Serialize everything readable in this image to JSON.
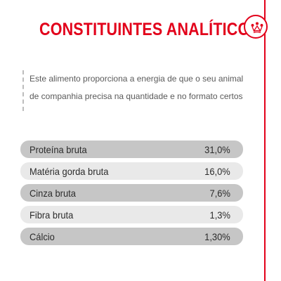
{
  "title": "CONSTITUINTES ANALÍTICOS",
  "logo_icon": "crown-icon",
  "colors": {
    "accent": "#e2001a",
    "row_dark": "#c6c6c6",
    "row_light": "#e9e9e9",
    "text": "#2b2b2b",
    "intro_text": "#5a5a5a"
  },
  "intro": "Este alimento proporciona a energia de que o seu animal de companhia precisa na quantidade e no formato certos",
  "constituents": [
    {
      "label": "Proteína bruta",
      "value": "31,0%"
    },
    {
      "label": "Matéria gorda bruta",
      "value": "16,0%"
    },
    {
      "label": "Cinza bruta",
      "value": "7,6%"
    },
    {
      "label": "Fibra bruta",
      "value": "1,3%"
    },
    {
      "label": "Cálcio",
      "value": "1,30%"
    }
  ]
}
